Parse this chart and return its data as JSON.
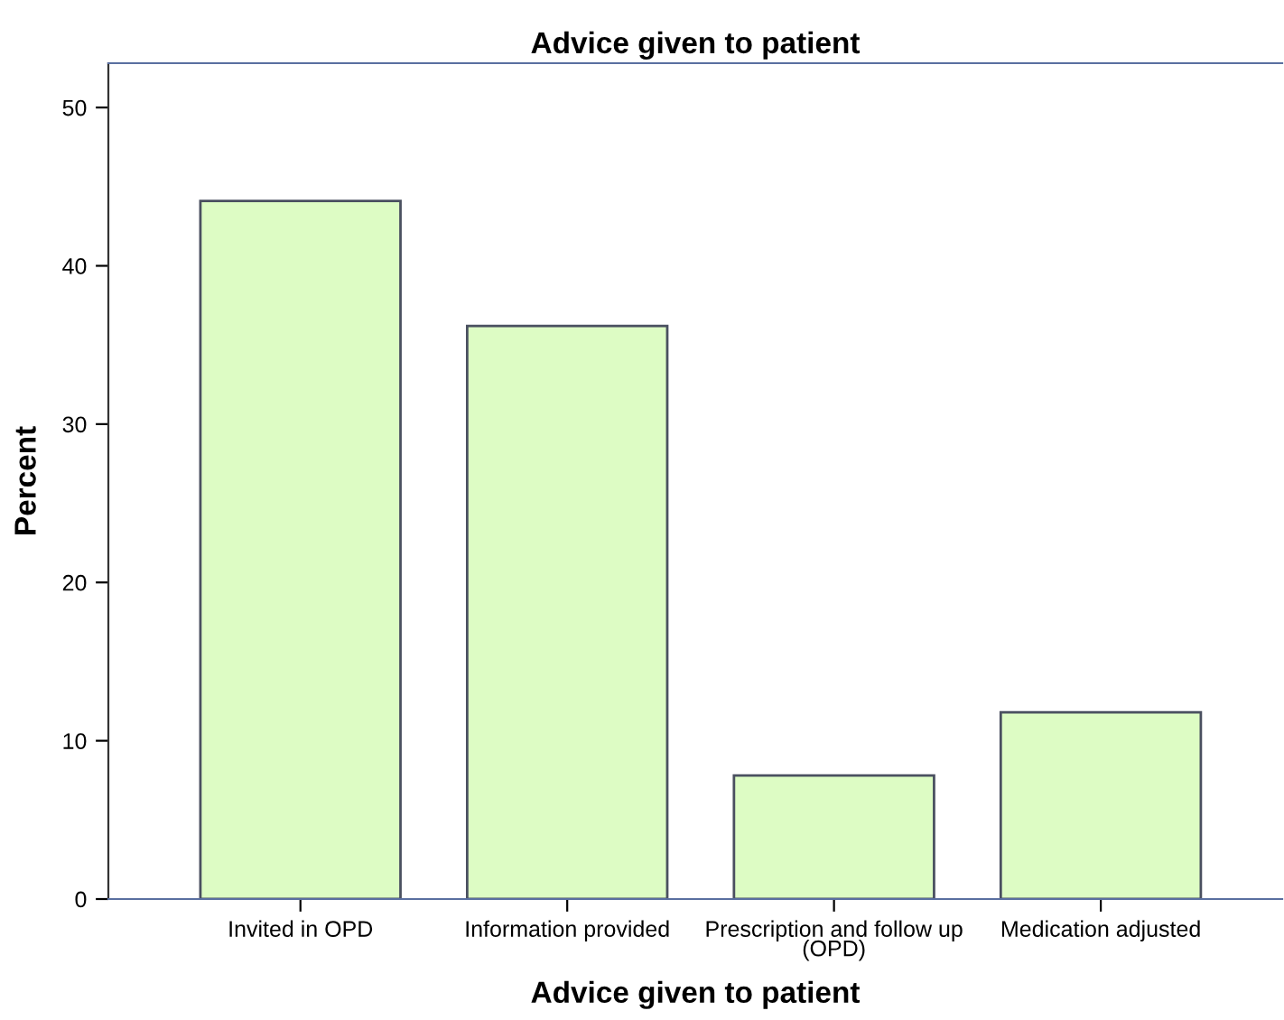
{
  "chart_data": {
    "type": "bar",
    "title": "Advice given to patient",
    "xlabel": "Advice given to patient",
    "ylabel": "Percent",
    "categories": [
      "Invited in OPD",
      "Information provided",
      "Prescription and follow up\n(OPD)",
      "Medication adjusted"
    ],
    "values": [
      44.1,
      36.2,
      7.8,
      11.8
    ],
    "color": "#ddfcc4",
    "ylim": [
      0,
      52.8
    ],
    "yticks": [
      0,
      10,
      20,
      30,
      40,
      50
    ],
    "grid": false
  }
}
